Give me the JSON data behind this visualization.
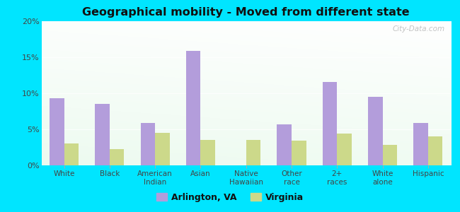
{
  "title": "Geographical mobility - Moved from different state",
  "categories": [
    "White",
    "Black",
    "American\nIndian",
    "Asian",
    "Native\nHawaiian",
    "Other\nrace",
    "2+\nraces",
    "White\nalone",
    "Hispanic"
  ],
  "arlington_values": [
    9.3,
    8.5,
    5.9,
    15.9,
    0,
    5.7,
    11.6,
    9.5,
    5.9
  ],
  "virginia_values": [
    3.0,
    2.3,
    4.5,
    3.5,
    3.5,
    3.4,
    4.4,
    2.8,
    4.0
  ],
  "arlington_color": "#b39ddb",
  "virginia_color": "#ccd98a",
  "background_outer": "#00e5ff",
  "ylim": [
    0,
    20
  ],
  "yticks": [
    0,
    5,
    10,
    15,
    20
  ],
  "ytick_labels": [
    "0%",
    "5%",
    "10%",
    "15%",
    "20%"
  ],
  "legend_arlington": "Arlington, VA",
  "legend_virginia": "Virginia",
  "watermark": "City-Data.com",
  "bar_width": 0.32
}
